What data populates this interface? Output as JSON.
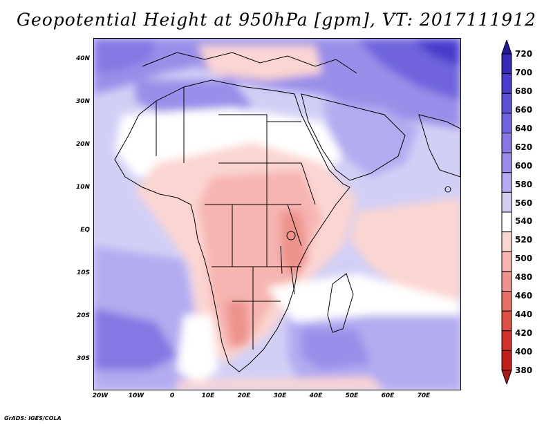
{
  "title": "Geopotential Height at 950hPa [gpm], VT: 2017111912",
  "credit": "GrADS: IGES/COLA",
  "map": {
    "lat_labels": [
      "40N",
      "30N",
      "20N",
      "10N",
      "EQ",
      "10S",
      "20S",
      "30S"
    ],
    "lon_labels": [
      "20W",
      "10W",
      "0",
      "10E",
      "20E",
      "30E",
      "40E",
      "50E",
      "60E",
      "70E"
    ]
  },
  "colorbar": {
    "labels": [
      "720",
      "700",
      "680",
      "660",
      "640",
      "620",
      "600",
      "580",
      "560",
      "540",
      "520",
      "500",
      "480",
      "460",
      "440",
      "420",
      "400",
      "380"
    ],
    "colors": [
      "#221996",
      "#3728b8",
      "#4a3bcc",
      "#5e50d6",
      "#7063dd",
      "#8578e3",
      "#998ee9",
      "#b3acf0",
      "#d2cff6",
      "#ffffff",
      "#fbd5d2",
      "#f6b5b1",
      "#ee928c",
      "#e67169",
      "#dd5048",
      "#d2322b",
      "#c01f1a",
      "#a91b16"
    ]
  }
}
